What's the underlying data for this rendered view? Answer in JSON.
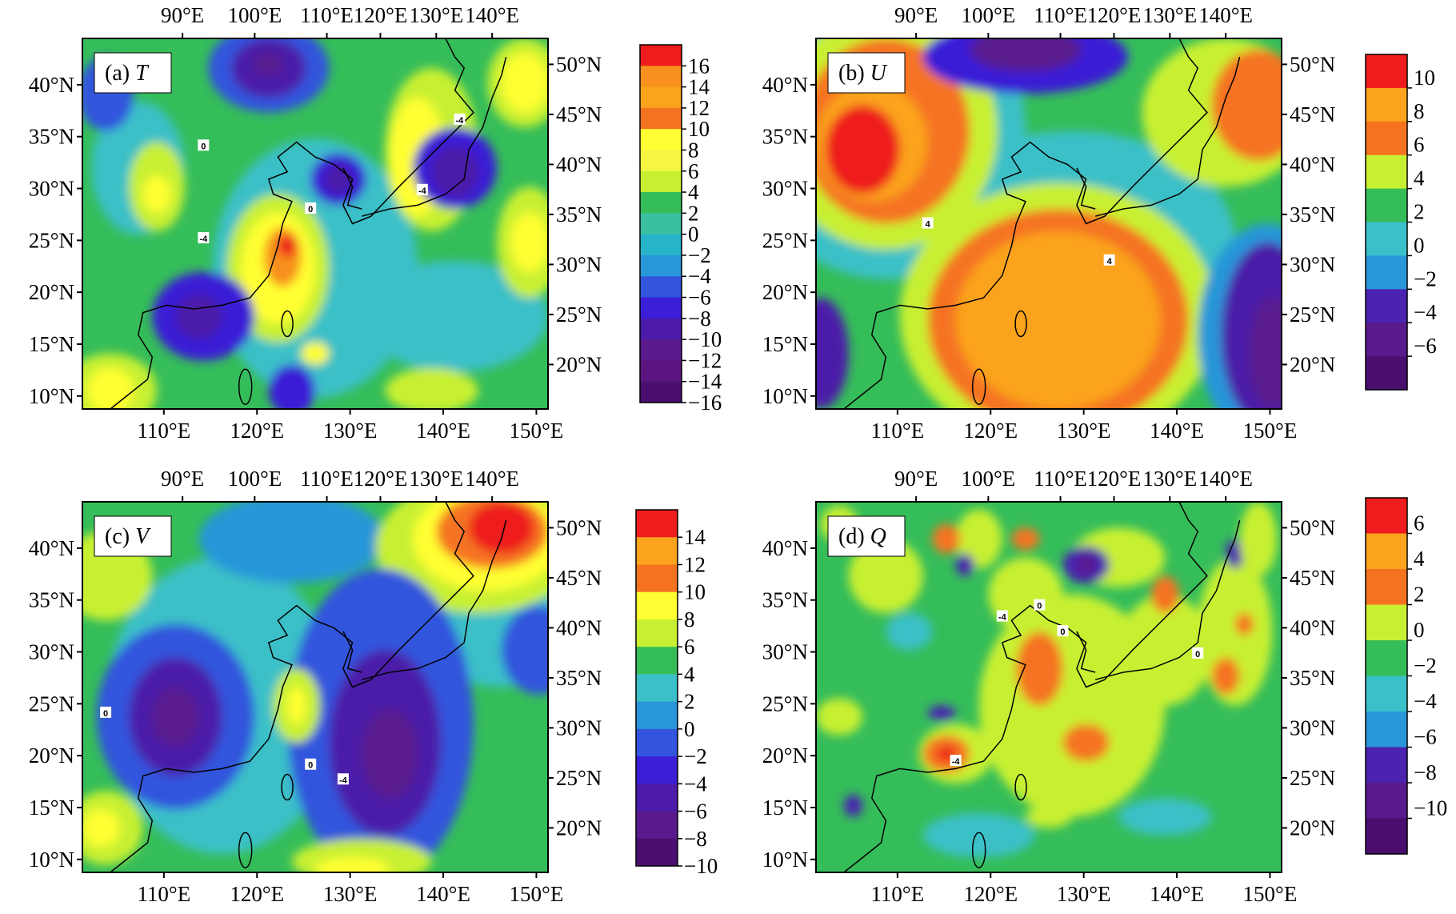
{
  "figure": {
    "panels": [
      {
        "id": "a",
        "label_prefix": "(a) ",
        "label_var": "T",
        "top_axis_labels": [
          "90°E",
          "100°E",
          "110°E",
          "120°E",
          "130°E",
          "140°E"
        ],
        "bottom_axis_labels": [
          "110°E",
          "120°E",
          "130°E",
          "140°E",
          "150°E"
        ],
        "left_axis_labels": [
          "40°N",
          "35°N",
          "30°N",
          "25°N",
          "20°N",
          "15°N",
          "10°N"
        ],
        "right_axis_labels": [
          "50°N",
          "45°N",
          "40°N",
          "35°N",
          "30°N",
          "25°N",
          "20°N"
        ],
        "colorbar_labels": [
          "16",
          "14",
          "12",
          "10",
          "8",
          "6",
          "4",
          "2",
          "0",
          "−2",
          "−4",
          "−6",
          "−8",
          "−10",
          "−12",
          "−14",
          "−16"
        ],
        "colorbar_colors": [
          "#ee1c1c",
          "#f7901e",
          "#fba31c",
          "#f57320",
          "#ffff33",
          "#f5f542",
          "#c8f032",
          "#35bd5a",
          "#3ac0a0",
          "#27b4c8",
          "#2896d8",
          "#3355dd",
          "#3a1fd6",
          "#4b1aa8",
          "#5a1a8e",
          "#5c1580",
          "#4a0f6e"
        ],
        "contour_labels": [
          "0",
          "-4",
          "0",
          "-4",
          "-4"
        ]
      },
      {
        "id": "b",
        "label_prefix": "(b) ",
        "label_var": "U",
        "top_axis_labels": [
          "90°E",
          "100°E",
          "110°E",
          "120°E",
          "130°E",
          "140°E"
        ],
        "bottom_axis_labels": [
          "110°E",
          "120°E",
          "130°E",
          "140°E",
          "150°E"
        ],
        "left_axis_labels": [
          "40°N",
          "35°N",
          "30°N",
          "25°N",
          "20°N",
          "15°N",
          "10°N"
        ],
        "right_axis_labels": [
          "50°N",
          "45°N",
          "40°N",
          "35°N",
          "30°N",
          "25°N",
          "20°N"
        ],
        "colorbar_labels": [
          "10",
          "8",
          "6",
          "4",
          "2",
          "0",
          "−2",
          "−4",
          "−6"
        ],
        "colorbar_colors": [
          "#ee1c1c",
          "#fba31c",
          "#f57320",
          "#c8f032",
          "#35bd5a",
          "#3ac0c8",
          "#2896d8",
          "#4a23b0",
          "#5a1a8e",
          "#4a0f6e"
        ],
        "contour_labels": [
          "4",
          "4"
        ]
      },
      {
        "id": "c",
        "label_prefix": "(c) ",
        "label_var": "V",
        "top_axis_labels": [
          "90°E",
          "100°E",
          "110°E",
          "120°E",
          "130°E",
          "140°E"
        ],
        "bottom_axis_labels": [
          "110°E",
          "120°E",
          "130°E",
          "140°E",
          "150°E"
        ],
        "left_axis_labels": [
          "40°N",
          "35°N",
          "30°N",
          "25°N",
          "20°N",
          "15°N",
          "10°N"
        ],
        "right_axis_labels": [
          "50°N",
          "45°N",
          "40°N",
          "35°N",
          "30°N",
          "25°N",
          "20°N"
        ],
        "colorbar_labels": [
          "14",
          "12",
          "10",
          "8",
          "6",
          "4",
          "2",
          "0",
          "−2",
          "−4",
          "−6",
          "−8",
          "−10"
        ],
        "colorbar_colors": [
          "#ee1c1c",
          "#fba31c",
          "#f57320",
          "#ffff33",
          "#c8f032",
          "#35bd5a",
          "#3ac0c8",
          "#2896d8",
          "#3355dd",
          "#3a1fd6",
          "#4b1aa8",
          "#5a1a8e",
          "#4a0f6e"
        ],
        "contour_labels": [
          "0",
          "0",
          "-4"
        ]
      },
      {
        "id": "d",
        "label_prefix": "(d) ",
        "label_var": "Q",
        "top_axis_labels": [
          "90°E",
          "100°E",
          "110°E",
          "120°E",
          "130°E",
          "140°E"
        ],
        "bottom_axis_labels": [
          "110°E",
          "120°E",
          "130°E",
          "140°E",
          "150°E"
        ],
        "left_axis_labels": [
          "40°N",
          "35°N",
          "30°N",
          "25°N",
          "20°N",
          "15°N",
          "10°N"
        ],
        "right_axis_labels": [
          "50°N",
          "45°N",
          "40°N",
          "35°N",
          "30°N",
          "25°N",
          "20°N"
        ],
        "colorbar_labels": [
          "6",
          "4",
          "2",
          "0",
          "−2",
          "−4",
          "−6",
          "−8",
          "−10"
        ],
        "colorbar_colors": [
          "#ee1c1c",
          "#fba31c",
          "#f57320",
          "#c8f032",
          "#35bd5a",
          "#3ac0c8",
          "#2896d8",
          "#4a23b0",
          "#5a1a8e",
          "#4a0f6e"
        ],
        "contour_labels": [
          "-4",
          "0",
          "0",
          "0",
          "-4"
        ]
      }
    ]
  }
}
